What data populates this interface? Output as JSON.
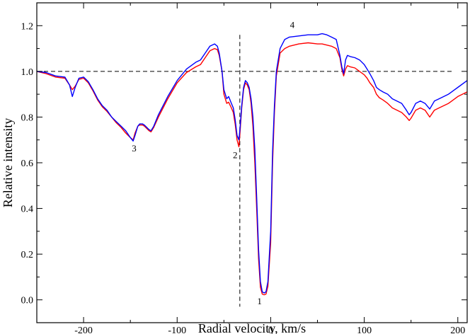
{
  "chart_data": {
    "type": "line",
    "xlabel": "Radial velocity, km/s",
    "ylabel": "Relative intensity",
    "xlim": [
      -250,
      210
    ],
    "ylim": [
      -0.1,
      1.3
    ],
    "x_ticks": [
      -200,
      -100,
      0,
      100,
      200
    ],
    "x_tick_labels": [
      "-200",
      "-100",
      "0",
      "100",
      "200"
    ],
    "y_ticks": [
      0.0,
      0.2,
      0.4,
      0.6,
      0.8,
      1.0,
      1.2
    ],
    "y_tick_labels": [
      "0.0",
      "0.2",
      "0.4",
      "0.6",
      "0.8",
      "1.0",
      "1.2"
    ],
    "grid": false,
    "continuum_level": 1.0,
    "marker_velocity": -33,
    "annotations": [
      {
        "text": "1",
        "x": -12,
        "y": -0.02
      },
      {
        "text": "2",
        "x": -38,
        "y": 0.62
      },
      {
        "text": "3",
        "x": -146,
        "y": 0.65
      },
      {
        "text": "4",
        "x": 23,
        "y": 1.19
      }
    ],
    "series": [
      {
        "color": "#0000ff",
        "x": [
          -250,
          -240,
          -230,
          -220,
          -215,
          -212,
          -209,
          -205,
          -200,
          -195,
          -190,
          -185,
          -180,
          -175,
          -170,
          -165,
          -160,
          -155,
          -150,
          -147,
          -145,
          -142,
          -140,
          -137,
          -135,
          -130,
          -128,
          -125,
          -120,
          -115,
          -110,
          -100,
          -90,
          -80,
          -75,
          -70,
          -65,
          -60,
          -57,
          -55,
          -52,
          -50,
          -47,
          -45,
          -42,
          -40,
          -38,
          -36,
          -34,
          -33,
          -31,
          -29,
          -27,
          -25,
          -23,
          -21,
          -19,
          -17,
          -15,
          -13,
          -11,
          -9,
          -7,
          -5,
          -3,
          0,
          2,
          4,
          6,
          10,
          15,
          20,
          30,
          40,
          50,
          55,
          60,
          65,
          70,
          74,
          76,
          78,
          80,
          82,
          85,
          90,
          95,
          100,
          103,
          106,
          110,
          113,
          116,
          120,
          125,
          130,
          140,
          145,
          148,
          150,
          155,
          160,
          165,
          170,
          175,
          180,
          190,
          200,
          210
        ],
        "y": [
          1.0,
          0.995,
          0.98,
          0.975,
          0.94,
          0.89,
          0.93,
          0.97,
          0.975,
          0.955,
          0.92,
          0.88,
          0.85,
          0.83,
          0.8,
          0.78,
          0.76,
          0.74,
          0.71,
          0.695,
          0.72,
          0.76,
          0.77,
          0.77,
          0.765,
          0.745,
          0.74,
          0.76,
          0.81,
          0.85,
          0.89,
          0.96,
          1.01,
          1.04,
          1.05,
          1.08,
          1.11,
          1.12,
          1.11,
          1.08,
          1.0,
          0.92,
          0.88,
          0.89,
          0.86,
          0.84,
          0.79,
          0.72,
          0.7,
          0.74,
          0.85,
          0.93,
          0.96,
          0.95,
          0.93,
          0.88,
          0.8,
          0.66,
          0.45,
          0.22,
          0.08,
          0.035,
          0.03,
          0.035,
          0.08,
          0.3,
          0.65,
          0.85,
          1.0,
          1.1,
          1.14,
          1.15,
          1.155,
          1.16,
          1.16,
          1.165,
          1.16,
          1.15,
          1.14,
          1.07,
          1.02,
          0.99,
          1.05,
          1.07,
          1.065,
          1.06,
          1.05,
          1.03,
          1.01,
          0.99,
          0.96,
          0.93,
          0.92,
          0.91,
          0.9,
          0.88,
          0.86,
          0.83,
          0.81,
          0.82,
          0.86,
          0.87,
          0.86,
          0.835,
          0.87,
          0.88,
          0.9,
          0.93,
          0.96
        ]
      },
      {
        "color": "#ff0000",
        "x": [
          -250,
          -240,
          -230,
          -220,
          -215,
          -212,
          -209,
          -205,
          -200,
          -195,
          -190,
          -185,
          -180,
          -175,
          -170,
          -165,
          -160,
          -155,
          -150,
          -147,
          -145,
          -142,
          -140,
          -137,
          -135,
          -130,
          -128,
          -125,
          -120,
          -115,
          -110,
          -100,
          -90,
          -80,
          -75,
          -70,
          -65,
          -60,
          -57,
          -55,
          -52,
          -50,
          -47,
          -45,
          -42,
          -40,
          -38,
          -36,
          -34,
          -33,
          -31,
          -29,
          -27,
          -25,
          -23,
          -21,
          -19,
          -17,
          -15,
          -13,
          -11,
          -9,
          -7,
          -5,
          -3,
          0,
          2,
          4,
          6,
          10,
          15,
          20,
          30,
          40,
          50,
          55,
          60,
          65,
          70,
          74,
          76,
          78,
          80,
          82,
          85,
          90,
          95,
          100,
          103,
          106,
          110,
          113,
          116,
          120,
          125,
          130,
          140,
          145,
          148,
          150,
          155,
          160,
          165,
          170,
          175,
          180,
          190,
          200,
          210
        ],
        "y": [
          1.0,
          0.99,
          0.975,
          0.97,
          0.94,
          0.92,
          0.935,
          0.965,
          0.97,
          0.95,
          0.915,
          0.875,
          0.845,
          0.825,
          0.8,
          0.775,
          0.755,
          0.73,
          0.71,
          0.7,
          0.73,
          0.76,
          0.765,
          0.765,
          0.76,
          0.74,
          0.735,
          0.755,
          0.8,
          0.84,
          0.88,
          0.95,
          0.995,
          1.02,
          1.03,
          1.06,
          1.09,
          1.1,
          1.095,
          1.07,
          1.0,
          0.9,
          0.86,
          0.865,
          0.84,
          0.82,
          0.77,
          0.7,
          0.67,
          0.72,
          0.84,
          0.92,
          0.95,
          0.94,
          0.92,
          0.86,
          0.76,
          0.6,
          0.4,
          0.18,
          0.055,
          0.025,
          0.022,
          0.025,
          0.06,
          0.25,
          0.6,
          0.82,
          0.98,
          1.08,
          1.1,
          1.11,
          1.12,
          1.125,
          1.12,
          1.12,
          1.115,
          1.11,
          1.1,
          1.06,
          1.01,
          0.98,
          1.01,
          1.025,
          1.02,
          1.015,
          1.0,
          0.985,
          0.97,
          0.95,
          0.93,
          0.9,
          0.885,
          0.875,
          0.86,
          0.84,
          0.82,
          0.8,
          0.785,
          0.795,
          0.83,
          0.84,
          0.83,
          0.8,
          0.83,
          0.84,
          0.86,
          0.89,
          0.91
        ]
      }
    ]
  }
}
